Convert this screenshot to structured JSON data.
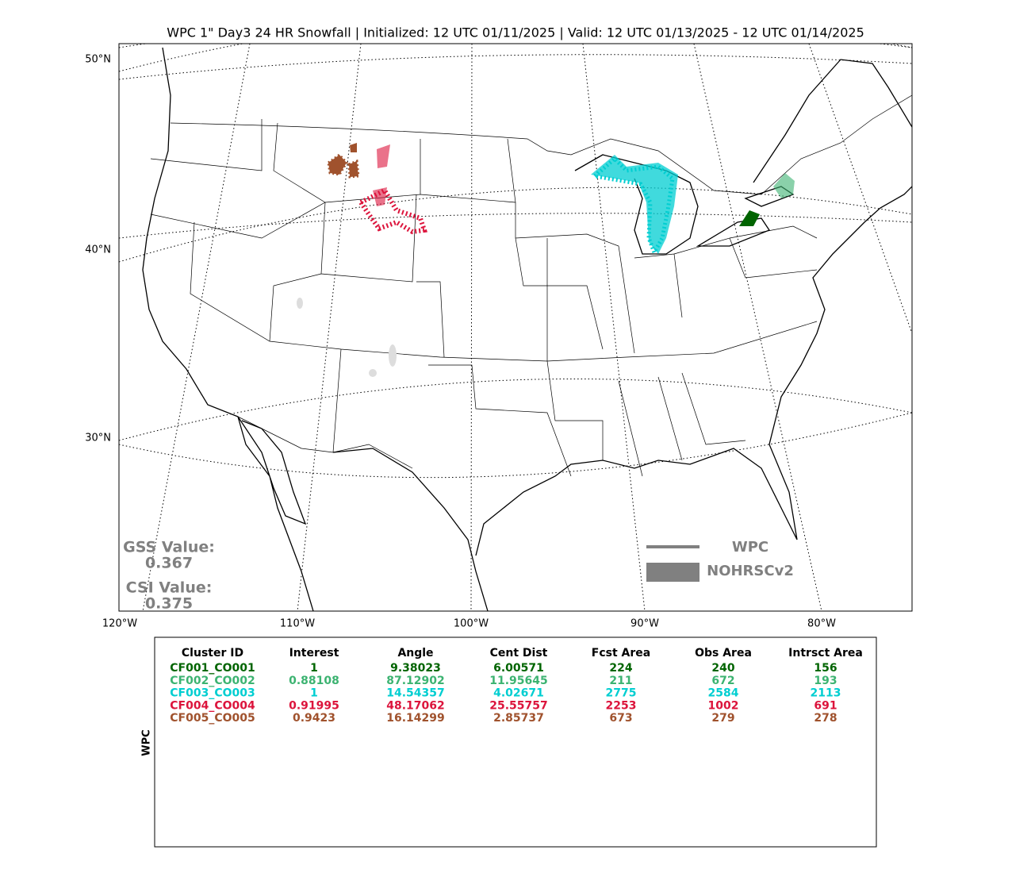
{
  "title": "WPC 1\" Day3 24 HR Snowfall | Initialized: 12 UTC 01/11/2025 | Valid: 12 UTC 01/13/2025 - 12 UTC 01/14/2025",
  "map": {
    "lat_labels": [
      "50°N",
      "40°N",
      "30°N"
    ],
    "lon_labels": [
      "120°W",
      "110°W",
      "100°W",
      "90°W",
      "80°W"
    ],
    "scores": {
      "gss_label": "GSS Value:",
      "gss": "0.367",
      "csi_label": "CSI Value:",
      "csi": "0.375"
    },
    "legend": [
      "WPC",
      "NOHRSCv2"
    ]
  },
  "table": {
    "side_label": "WPC",
    "columns": [
      "Cluster ID",
      "Interest",
      "Angle",
      "Cent Dist",
      "Fcst Area",
      "Obs Area",
      "Intrsct Area"
    ],
    "rows": [
      {
        "color": "#006400",
        "cells": [
          "CF001_CO001",
          "1",
          "9.38023",
          "6.00571",
          "224",
          "240",
          "156"
        ]
      },
      {
        "color": "#3cb371",
        "cells": [
          "CF002_CO002",
          "0.88108",
          "87.12902",
          "11.95645",
          "211",
          "672",
          "193"
        ]
      },
      {
        "color": "#00ced1",
        "cells": [
          "CF003_CO003",
          "1",
          "14.54357",
          "4.02671",
          "2775",
          "2584",
          "2113"
        ]
      },
      {
        "color": "#dc143c",
        "cells": [
          "CF004_CO004",
          "0.91995",
          "48.17062",
          "25.55757",
          "2253",
          "1002",
          "691"
        ]
      },
      {
        "color": "#a0522d",
        "cells": [
          "CF005_CO005",
          "0.9423",
          "16.14299",
          "2.85737",
          "673",
          "279",
          "278"
        ]
      }
    ]
  }
}
